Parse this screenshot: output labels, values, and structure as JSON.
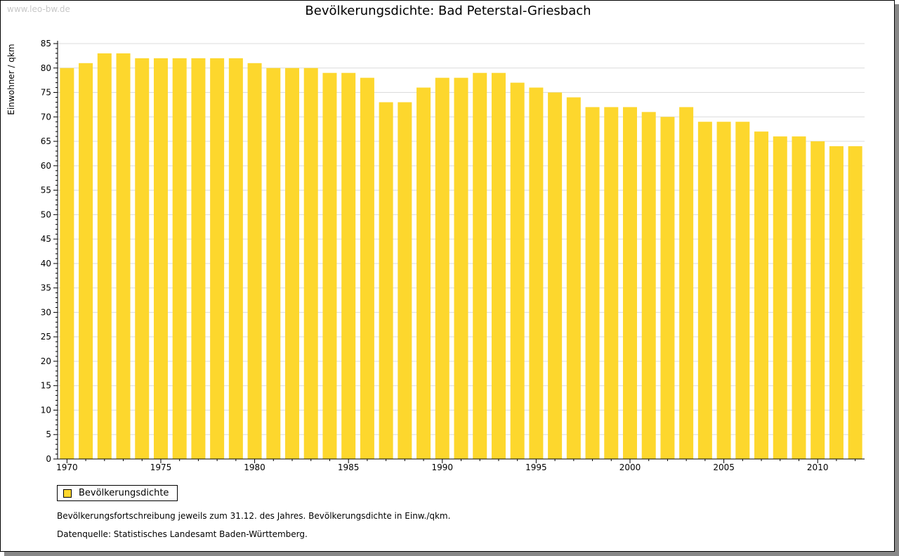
{
  "watermark": "www.leo-bw.de",
  "chart_data": {
    "type": "bar",
    "title": "Bevölkerungsdichte: Bad Peterstal-Griesbach",
    "ylabel": "Einwohner / qkm",
    "xlabel": "",
    "ylim": [
      0,
      85
    ],
    "yticks": [
      0,
      5,
      10,
      15,
      20,
      25,
      30,
      35,
      40,
      45,
      50,
      55,
      60,
      65,
      70,
      75,
      80,
      85
    ],
    "xtick_labels": [
      "1970",
      "1975",
      "1980",
      "1985",
      "1990",
      "1995",
      "2000",
      "2005",
      "2010"
    ],
    "grid": true,
    "categories": [
      1970,
      1971,
      1972,
      1973,
      1974,
      1975,
      1976,
      1977,
      1978,
      1979,
      1980,
      1981,
      1982,
      1983,
      1984,
      1985,
      1986,
      1987,
      1988,
      1989,
      1990,
      1991,
      1992,
      1993,
      1994,
      1995,
      1996,
      1997,
      1998,
      1999,
      2000,
      2001,
      2002,
      2003,
      2004,
      2005,
      2006,
      2007,
      2008,
      2009,
      2010,
      2011,
      2012
    ],
    "series": [
      {
        "name": "Bevölkerungsdichte",
        "color": "#fdd72d",
        "values": [
          80,
          81,
          83,
          83,
          82,
          82,
          82,
          82,
          82,
          82,
          81,
          80,
          80,
          80,
          79,
          79,
          78,
          73,
          73,
          76,
          78,
          78,
          79,
          79,
          77,
          76,
          75,
          74,
          72,
          72,
          72,
          71,
          70,
          72,
          69,
          69,
          69,
          67,
          66,
          66,
          65,
          64,
          64
        ]
      }
    ],
    "legend_position": "bottom-left"
  },
  "notes": [
    "Bevölkerungsfortschreibung jeweils zum 31.12. des Jahres. Bevölkerungsdichte in Einw./qkm.",
    "Datenquelle: Statistisches Landesamt Baden-Württemberg."
  ]
}
